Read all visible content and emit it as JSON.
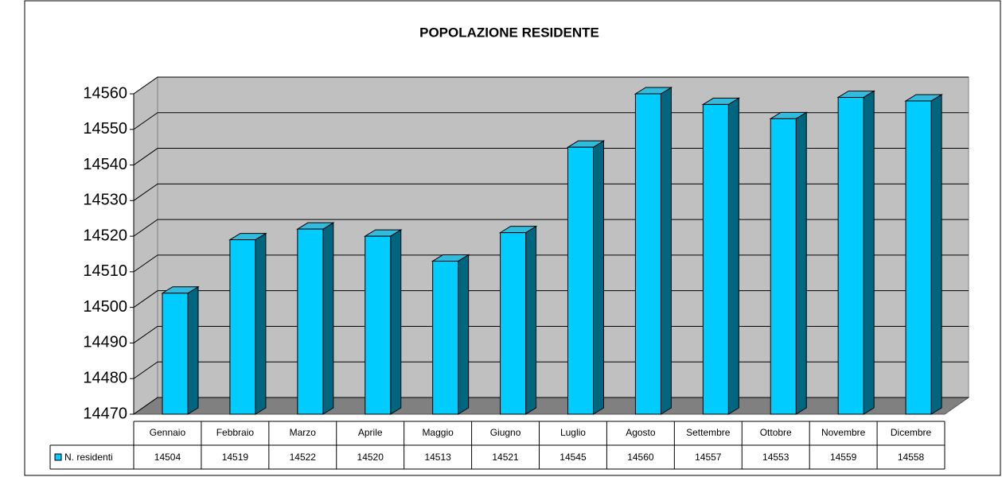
{
  "chart_data": {
    "type": "bar",
    "title": "POPOLAZIONE RESIDENTE",
    "categories": [
      "Gennaio",
      "Febbraio",
      "Marzo",
      "Aprile",
      "Maggio",
      "Giugno",
      "Luglio",
      "Agosto",
      "Settembre",
      "Ottobre",
      "Novembre",
      "Dicembre"
    ],
    "series": [
      {
        "name": "N. residenti",
        "color": "#00ccff",
        "values": [
          14504,
          14519,
          14522,
          14520,
          14513,
          14521,
          14545,
          14560,
          14557,
          14553,
          14559,
          14558
        ]
      }
    ],
    "ylim": [
      14470,
      14560
    ],
    "yticks": [
      14470,
      14480,
      14490,
      14500,
      14510,
      14520,
      14530,
      14540,
      14550,
      14560
    ],
    "grid": true,
    "legend": "bottom-left"
  }
}
